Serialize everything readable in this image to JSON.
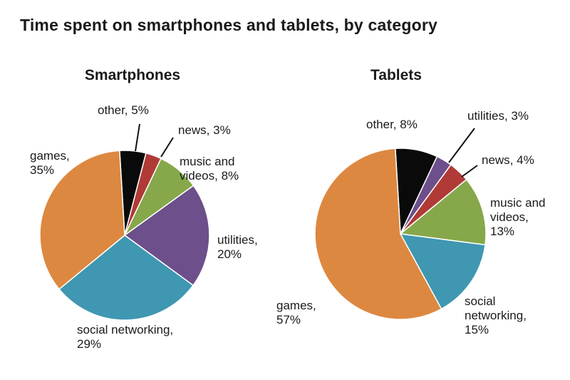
{
  "title": "Time spent on smartphones and tablets, by category",
  "colors": {
    "other": "#0a0a0a",
    "news": "#b03a36",
    "music and videos": "#86a84a",
    "utilities": "#6c4f8b",
    "social networking": "#3f97b1",
    "games": "#dd8840"
  },
  "chart_data": [
    {
      "type": "pie",
      "title": "Smartphones",
      "slices": [
        {
          "label": "other",
          "value": 5,
          "display": [
            "other, 5%"
          ]
        },
        {
          "label": "news",
          "value": 3,
          "display": [
            "news, 3%"
          ]
        },
        {
          "label": "music and videos",
          "value": 8,
          "display": [
            "music and",
            "videos, 8%"
          ]
        },
        {
          "label": "utilities",
          "value": 20,
          "display": [
            "utilities,",
            "20%"
          ]
        },
        {
          "label": "social networking",
          "value": 29,
          "display": [
            "social networking,",
            "29%"
          ]
        },
        {
          "label": "games",
          "value": 35,
          "display": [
            "games,",
            "35%"
          ]
        }
      ]
    },
    {
      "type": "pie",
      "title": "Tablets",
      "slices": [
        {
          "label": "other",
          "value": 8,
          "display": [
            "other, 8%"
          ]
        },
        {
          "label": "utilities",
          "value": 3,
          "display": [
            "utilities, 3%"
          ]
        },
        {
          "label": "news",
          "value": 4,
          "display": [
            "news, 4%"
          ]
        },
        {
          "label": "music and videos",
          "value": 13,
          "display": [
            "music and",
            "videos,",
            "13%"
          ]
        },
        {
          "label": "social networking",
          "value": 15,
          "display": [
            "social",
            "networking,",
            "15%"
          ]
        },
        {
          "label": "games",
          "value": 57,
          "display": [
            "games,",
            "57%"
          ]
        }
      ]
    }
  ]
}
